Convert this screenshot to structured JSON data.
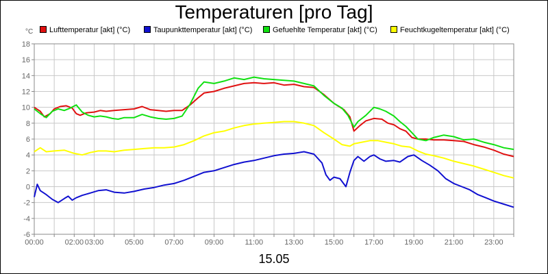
{
  "chart_data": {
    "type": "line",
    "title": "Temperaturen [pro Tag]",
    "unit_label": "°C",
    "footer": "15.05",
    "ylim": [
      -6,
      18
    ],
    "y_ticks": [
      "-6",
      "-4",
      "-2",
      "0",
      "2",
      "4",
      "6",
      "8",
      "10",
      "12",
      "14",
      "16",
      "18"
    ],
    "xlim": [
      0,
      24
    ],
    "x_ticks": [
      {
        "h": 0,
        "label": "00:00"
      },
      {
        "h": 2,
        "label": "02:00"
      },
      {
        "h": 3,
        "label": "03:00"
      },
      {
        "h": 5,
        "label": "05:00"
      },
      {
        "h": 7,
        "label": "07:00"
      },
      {
        "h": 9,
        "label": "09:00"
      },
      {
        "h": 11,
        "label": "11:00"
      },
      {
        "h": 13,
        "label": "13:00"
      },
      {
        "h": 15,
        "label": "15:00"
      },
      {
        "h": 17,
        "label": "17:00"
      },
      {
        "h": 19,
        "label": "19:00"
      },
      {
        "h": 21,
        "label": "21:00"
      },
      {
        "h": 23,
        "label": "23:00"
      }
    ],
    "grid": true,
    "legend_position": "top",
    "series": [
      {
        "name": "Lufttemperatur [akt] (°C)",
        "color": "#e01010",
        "points": [
          [
            0,
            10
          ],
          [
            0.3,
            9.5
          ],
          [
            0.5,
            8.8
          ],
          [
            0.8,
            9.2
          ],
          [
            1,
            9.8
          ],
          [
            1.3,
            10.1
          ],
          [
            1.6,
            10.2
          ],
          [
            1.9,
            9.9
          ],
          [
            2.1,
            9.2
          ],
          [
            2.3,
            9.0
          ],
          [
            2.6,
            9.3
          ],
          [
            3,
            9.4
          ],
          [
            3.3,
            9.6
          ],
          [
            3.6,
            9.5
          ],
          [
            4,
            9.6
          ],
          [
            4.5,
            9.7
          ],
          [
            5,
            9.8
          ],
          [
            5.4,
            10.1
          ],
          [
            5.8,
            9.7
          ],
          [
            6.2,
            9.6
          ],
          [
            6.6,
            9.5
          ],
          [
            7,
            9.6
          ],
          [
            7.4,
            9.6
          ],
          [
            7.8,
            10.3
          ],
          [
            8.2,
            11.2
          ],
          [
            8.5,
            11.8
          ],
          [
            9,
            12.0
          ],
          [
            9.5,
            12.4
          ],
          [
            10,
            12.7
          ],
          [
            10.5,
            13.0
          ],
          [
            11,
            13.1
          ],
          [
            11.5,
            13.0
          ],
          [
            12,
            13.1
          ],
          [
            12.5,
            12.8
          ],
          [
            13,
            12.9
          ],
          [
            13.5,
            12.6
          ],
          [
            14,
            12.5
          ],
          [
            14.5,
            11.6
          ],
          [
            15,
            10.5
          ],
          [
            15.5,
            9.7
          ],
          [
            15.8,
            8.8
          ],
          [
            16,
            7.0
          ],
          [
            16.3,
            7.7
          ],
          [
            16.6,
            8.3
          ],
          [
            17,
            8.6
          ],
          [
            17.4,
            8.5
          ],
          [
            17.7,
            8.0
          ],
          [
            18,
            7.8
          ],
          [
            18.3,
            7.3
          ],
          [
            18.6,
            7.0
          ],
          [
            18.9,
            6.2
          ],
          [
            19.2,
            6.0
          ],
          [
            19.6,
            6.0
          ],
          [
            20,
            5.9
          ],
          [
            20.5,
            5.9
          ],
          [
            21,
            5.8
          ],
          [
            21.5,
            5.7
          ],
          [
            22,
            5.3
          ],
          [
            22.5,
            5.0
          ],
          [
            23,
            4.6
          ],
          [
            23.5,
            4.1
          ],
          [
            24,
            3.8
          ]
        ]
      },
      {
        "name": "Taupunkttemperatur [akt] (°C)",
        "color": "#1010d0",
        "points": [
          [
            0,
            -1.3
          ],
          [
            0.15,
            0.3
          ],
          [
            0.3,
            -0.5
          ],
          [
            0.6,
            -1.0
          ],
          [
            0.9,
            -1.6
          ],
          [
            1.2,
            -2.0
          ],
          [
            1.5,
            -1.5
          ],
          [
            1.7,
            -1.2
          ],
          [
            1.9,
            -1.7
          ],
          [
            2.1,
            -1.4
          ],
          [
            2.4,
            -1.1
          ],
          [
            2.8,
            -0.8
          ],
          [
            3.2,
            -0.5
          ],
          [
            3.6,
            -0.4
          ],
          [
            4,
            -0.7
          ],
          [
            4.5,
            -0.8
          ],
          [
            5,
            -0.6
          ],
          [
            5.5,
            -0.3
          ],
          [
            6,
            -0.1
          ],
          [
            6.5,
            0.2
          ],
          [
            7,
            0.4
          ],
          [
            7.5,
            0.8
          ],
          [
            8,
            1.3
          ],
          [
            8.5,
            1.8
          ],
          [
            9,
            2.0
          ],
          [
            9.5,
            2.4
          ],
          [
            10,
            2.8
          ],
          [
            10.5,
            3.1
          ],
          [
            11,
            3.3
          ],
          [
            11.5,
            3.6
          ],
          [
            12,
            3.9
          ],
          [
            12.5,
            4.1
          ],
          [
            13,
            4.2
          ],
          [
            13.5,
            4.4
          ],
          [
            14,
            4.1
          ],
          [
            14.4,
            3.0
          ],
          [
            14.6,
            1.5
          ],
          [
            14.8,
            0.8
          ],
          [
            15,
            1.2
          ],
          [
            15.3,
            1.0
          ],
          [
            15.6,
            0.0
          ],
          [
            15.8,
            1.8
          ],
          [
            16,
            3.3
          ],
          [
            16.2,
            3.8
          ],
          [
            16.5,
            3.2
          ],
          [
            16.8,
            3.8
          ],
          [
            17,
            4.0
          ],
          [
            17.3,
            3.5
          ],
          [
            17.6,
            3.2
          ],
          [
            18,
            3.3
          ],
          [
            18.3,
            3.1
          ],
          [
            18.7,
            3.8
          ],
          [
            19,
            4.0
          ],
          [
            19.4,
            3.3
          ],
          [
            19.8,
            2.7
          ],
          [
            20.2,
            2.0
          ],
          [
            20.6,
            1.0
          ],
          [
            21,
            0.4
          ],
          [
            21.4,
            0.0
          ],
          [
            21.8,
            -0.4
          ],
          [
            22.2,
            -1.0
          ],
          [
            22.6,
            -1.4
          ],
          [
            23,
            -1.8
          ],
          [
            23.5,
            -2.2
          ],
          [
            24,
            -2.6
          ]
        ]
      },
      {
        "name": "Gefuehlte Temperatur [akt] (°C)",
        "color": "#10e010",
        "points": [
          [
            0,
            9.8
          ],
          [
            0.3,
            9.2
          ],
          [
            0.6,
            8.7
          ],
          [
            0.9,
            9.5
          ],
          [
            1.2,
            9.8
          ],
          [
            1.5,
            9.6
          ],
          [
            1.8,
            9.9
          ],
          [
            2.1,
            10.3
          ],
          [
            2.4,
            9.4
          ],
          [
            2.7,
            9.0
          ],
          [
            3,
            8.8
          ],
          [
            3.3,
            8.9
          ],
          [
            3.6,
            8.8
          ],
          [
            3.9,
            8.6
          ],
          [
            4.2,
            8.5
          ],
          [
            4.5,
            8.7
          ],
          [
            5,
            8.7
          ],
          [
            5.4,
            9.1
          ],
          [
            5.8,
            8.8
          ],
          [
            6.2,
            8.6
          ],
          [
            6.6,
            8.5
          ],
          [
            7,
            8.6
          ],
          [
            7.4,
            8.9
          ],
          [
            7.8,
            10.4
          ],
          [
            8.2,
            12.4
          ],
          [
            8.5,
            13.2
          ],
          [
            9,
            13.0
          ],
          [
            9.5,
            13.3
          ],
          [
            10,
            13.7
          ],
          [
            10.5,
            13.5
          ],
          [
            11,
            13.8
          ],
          [
            11.5,
            13.6
          ],
          [
            12,
            13.5
          ],
          [
            12.5,
            13.4
          ],
          [
            13,
            13.3
          ],
          [
            13.5,
            13.0
          ],
          [
            14,
            12.7
          ],
          [
            14.5,
            11.5
          ],
          [
            15,
            10.5
          ],
          [
            15.4,
            9.9
          ],
          [
            15.7,
            9.0
          ],
          [
            16,
            7.5
          ],
          [
            16.2,
            8.2
          ],
          [
            16.6,
            9.0
          ],
          [
            17,
            10.0
          ],
          [
            17.3,
            9.8
          ],
          [
            17.6,
            9.5
          ],
          [
            18,
            8.9
          ],
          [
            18.3,
            8.2
          ],
          [
            18.6,
            7.6
          ],
          [
            18.9,
            6.8
          ],
          [
            19.2,
            6.0
          ],
          [
            19.6,
            5.8
          ],
          [
            20,
            6.2
          ],
          [
            20.5,
            6.5
          ],
          [
            21,
            6.3
          ],
          [
            21.5,
            5.9
          ],
          [
            22,
            6.0
          ],
          [
            22.5,
            5.6
          ],
          [
            23,
            5.3
          ],
          [
            23.5,
            4.9
          ],
          [
            24,
            4.7
          ]
        ]
      },
      {
        "name": "Feuchtkugeltemperatur [akt] (°C)",
        "color": "#ffff00",
        "points": [
          [
            0,
            4.4
          ],
          [
            0.3,
            4.9
          ],
          [
            0.6,
            4.4
          ],
          [
            1,
            4.5
          ],
          [
            1.5,
            4.6
          ],
          [
            2,
            4.2
          ],
          [
            2.4,
            4.0
          ],
          [
            2.8,
            4.3
          ],
          [
            3.2,
            4.5
          ],
          [
            3.6,
            4.5
          ],
          [
            4,
            4.4
          ],
          [
            4.5,
            4.6
          ],
          [
            5,
            4.7
          ],
          [
            5.5,
            4.8
          ],
          [
            6,
            4.9
          ],
          [
            6.5,
            4.9
          ],
          [
            7,
            5.0
          ],
          [
            7.5,
            5.3
          ],
          [
            8,
            5.8
          ],
          [
            8.5,
            6.4
          ],
          [
            9,
            6.8
          ],
          [
            9.5,
            7.0
          ],
          [
            10,
            7.4
          ],
          [
            10.5,
            7.7
          ],
          [
            11,
            7.9
          ],
          [
            11.5,
            8.0
          ],
          [
            12,
            8.1
          ],
          [
            12.5,
            8.2
          ],
          [
            13,
            8.2
          ],
          [
            13.5,
            8.0
          ],
          [
            14,
            7.7
          ],
          [
            14.5,
            6.8
          ],
          [
            15,
            6.0
          ],
          [
            15.4,
            5.3
          ],
          [
            15.8,
            5.1
          ],
          [
            16,
            5.4
          ],
          [
            16.4,
            5.6
          ],
          [
            16.8,
            5.8
          ],
          [
            17.2,
            5.8
          ],
          [
            17.6,
            5.6
          ],
          [
            18,
            5.4
          ],
          [
            18.4,
            5.1
          ],
          [
            18.8,
            5.0
          ],
          [
            19.2,
            4.5
          ],
          [
            19.6,
            4.1
          ],
          [
            20,
            3.9
          ],
          [
            20.5,
            3.6
          ],
          [
            21,
            3.2
          ],
          [
            21.5,
            2.9
          ],
          [
            22,
            2.6
          ],
          [
            22.5,
            2.2
          ],
          [
            23,
            1.8
          ],
          [
            23.5,
            1.4
          ],
          [
            24,
            1.1
          ]
        ]
      }
    ]
  }
}
